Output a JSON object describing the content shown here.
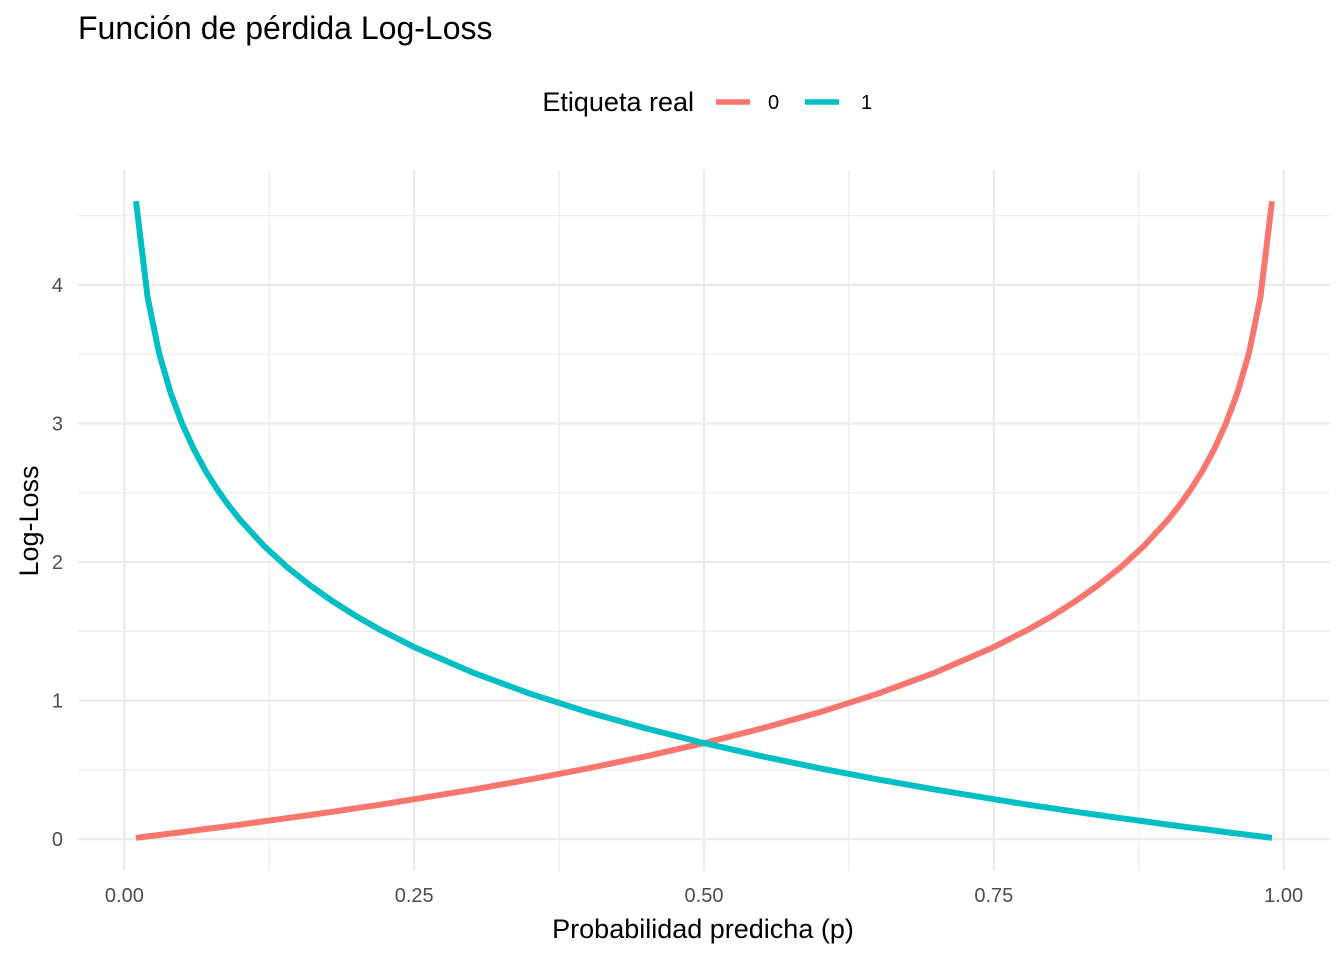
{
  "chart_data": {
    "type": "line",
    "title": "Función de pérdida Log-Loss",
    "xlabel": "Probabilidad predicha (p)",
    "ylabel": "Log-Loss",
    "xlim": [
      -0.04,
      1.04
    ],
    "ylim": [
      -0.23,
      4.83
    ],
    "x_ticks": [
      0.0,
      0.25,
      0.5,
      0.75,
      1.0
    ],
    "x_tick_labels": [
      "0.00",
      "0.25",
      "0.50",
      "0.75",
      "1.00"
    ],
    "y_ticks": [
      0,
      1,
      2,
      3,
      4
    ],
    "y_tick_labels": [
      "0",
      "1",
      "2",
      "3",
      "4"
    ],
    "grid": true,
    "legend": {
      "title": "Etiqueta real",
      "position": "top"
    },
    "x": [
      0.01,
      0.02,
      0.03,
      0.04,
      0.05,
      0.06,
      0.07,
      0.08,
      0.09,
      0.1,
      0.12,
      0.14,
      0.16,
      0.18,
      0.2,
      0.22,
      0.25,
      0.3,
      0.35,
      0.4,
      0.45,
      0.5,
      0.55,
      0.6,
      0.65,
      0.7,
      0.75,
      0.78,
      0.8,
      0.82,
      0.84,
      0.86,
      0.88,
      0.9,
      0.91,
      0.92,
      0.93,
      0.94,
      0.95,
      0.96,
      0.97,
      0.98,
      0.99
    ],
    "series": [
      {
        "name": "0",
        "color": "#F8766D",
        "values": [
          0.01,
          0.02,
          0.03,
          0.041,
          0.051,
          0.062,
          0.073,
          0.083,
          0.094,
          0.105,
          0.128,
          0.151,
          0.174,
          0.198,
          0.223,
          0.248,
          0.288,
          0.357,
          0.431,
          0.511,
          0.598,
          0.693,
          0.799,
          0.916,
          1.05,
          1.204,
          1.386,
          1.514,
          1.609,
          1.715,
          1.833,
          1.966,
          2.12,
          2.303,
          2.408,
          2.526,
          2.659,
          2.813,
          2.996,
          3.219,
          3.507,
          3.912,
          4.605
        ]
      },
      {
        "name": "1",
        "color": "#00BFC4",
        "values": [
          4.605,
          3.912,
          3.507,
          3.219,
          2.996,
          2.813,
          2.659,
          2.526,
          2.408,
          2.303,
          2.12,
          1.966,
          1.833,
          1.715,
          1.609,
          1.514,
          1.386,
          1.204,
          1.05,
          0.916,
          0.799,
          0.693,
          0.598,
          0.511,
          0.431,
          0.357,
          0.288,
          0.248,
          0.223,
          0.198,
          0.174,
          0.151,
          0.128,
          0.105,
          0.094,
          0.083,
          0.073,
          0.062,
          0.051,
          0.041,
          0.03,
          0.02,
          0.01
        ]
      }
    ]
  }
}
